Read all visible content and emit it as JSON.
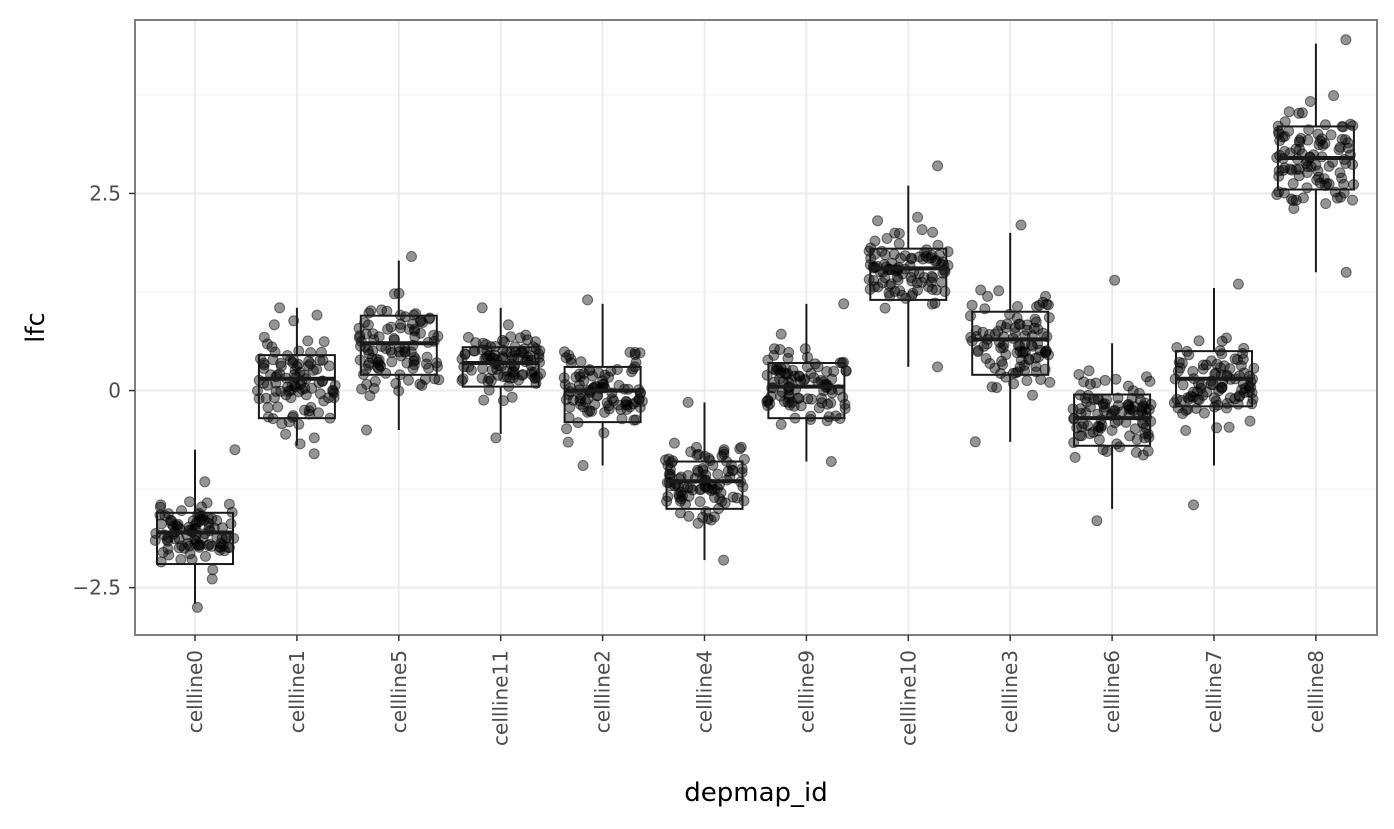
{
  "chart_data": {
    "type": "boxplot",
    "title": "",
    "xlabel": "depmap_id",
    "ylabel": "lfc",
    "categories": [
      "cellline0",
      "cellline1",
      "cellline5",
      "cellline11",
      "cellline2",
      "cellline4",
      "cellline9",
      "cellline10",
      "cellline3",
      "cellline6",
      "cellline7",
      "cellline8"
    ],
    "yticks": [
      -2.5,
      0,
      2.5
    ],
    "ytick_labels": [
      "−2.5",
      "0",
      "2.5"
    ],
    "ylim": [
      -3.1,
      4.7
    ],
    "grid": true,
    "legend": "none",
    "points_per_group": 100,
    "boxes": [
      {
        "category": "cellline0",
        "whisker_low": -2.7,
        "q1": -2.2,
        "median": -1.8,
        "q3": -1.55,
        "whisker_high": -0.75,
        "jitter_min": -2.75,
        "jitter_max": -0.75
      },
      {
        "category": "cellline1",
        "whisker_low": -0.7,
        "q1": -0.35,
        "median": 0.15,
        "q3": 0.45,
        "whisker_high": 1.05,
        "jitter_min": -0.8,
        "jitter_max": 1.05
      },
      {
        "category": "cellline5",
        "whisker_low": -0.5,
        "q1": 0.2,
        "median": 0.6,
        "q3": 0.95,
        "whisker_high": 1.65,
        "jitter_min": -0.5,
        "jitter_max": 1.7
      },
      {
        "category": "cellline11",
        "whisker_low": -0.55,
        "q1": 0.05,
        "median": 0.35,
        "q3": 0.55,
        "whisker_high": 1.05,
        "jitter_min": -0.6,
        "jitter_max": 1.05
      },
      {
        "category": "cellline2",
        "whisker_low": -0.95,
        "q1": -0.4,
        "median": 0.0,
        "q3": 0.3,
        "whisker_high": 1.1,
        "jitter_min": -0.95,
        "jitter_max": 1.15
      },
      {
        "category": "cellline4",
        "whisker_low": -2.15,
        "q1": -1.5,
        "median": -1.15,
        "q3": -0.9,
        "whisker_high": -0.15,
        "jitter_min": -2.15,
        "jitter_max": -0.15
      },
      {
        "category": "cellline9",
        "whisker_low": -0.9,
        "q1": -0.35,
        "median": 0.05,
        "q3": 0.35,
        "whisker_high": 1.1,
        "jitter_min": -0.9,
        "jitter_max": 1.1
      },
      {
        "category": "cellline10",
        "whisker_low": 0.3,
        "q1": 1.15,
        "median": 1.55,
        "q3": 1.8,
        "whisker_high": 2.6,
        "jitter_min": 0.3,
        "jitter_max": 2.85
      },
      {
        "category": "cellline3",
        "whisker_low": -0.65,
        "q1": 0.2,
        "median": 0.65,
        "q3": 1.0,
        "whisker_high": 2.0,
        "jitter_min": -0.65,
        "jitter_max": 2.1
      },
      {
        "category": "cellline6",
        "whisker_low": -1.5,
        "q1": -0.7,
        "median": -0.35,
        "q3": -0.05,
        "whisker_high": 0.6,
        "jitter_min": -1.65,
        "jitter_max": 1.4
      },
      {
        "category": "cellline7",
        "whisker_low": -0.95,
        "q1": -0.2,
        "median": 0.15,
        "q3": 0.5,
        "whisker_high": 1.3,
        "jitter_min": -1.45,
        "jitter_max": 1.35
      },
      {
        "category": "cellline8",
        "whisker_low": 1.5,
        "q1": 2.55,
        "median": 2.95,
        "q3": 3.35,
        "whisker_high": 4.4,
        "jitter_min": 1.5,
        "jitter_max": 4.45
      }
    ],
    "colors": {
      "point": "#000000",
      "box": "#1a1a1a",
      "grid": "#ebebeb",
      "panel_border": "#7f7f7f"
    }
  }
}
